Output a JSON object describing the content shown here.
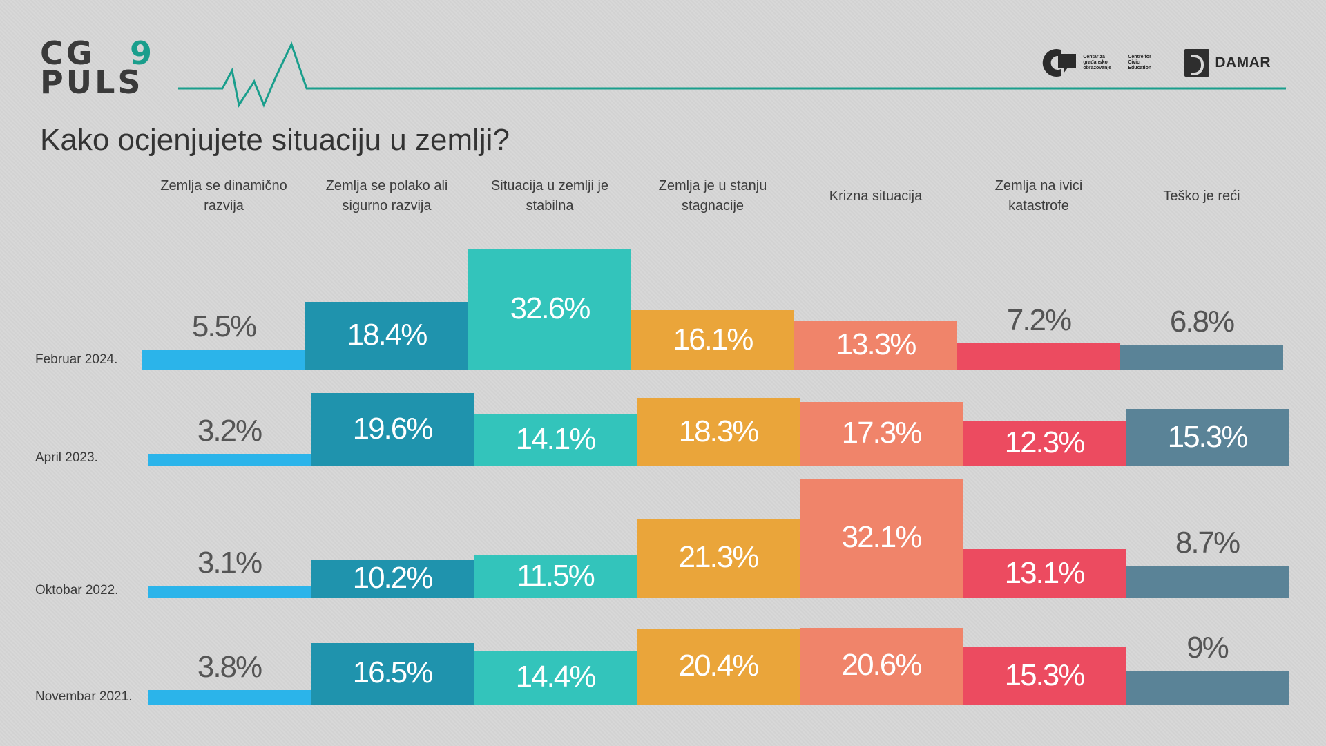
{
  "brand": {
    "logo_line1": "CG",
    "logo_number": "9",
    "logo_line2": "PULS",
    "partner1_text": "Centar za građansko obrazovanje",
    "partner1_text_en": "Centre for Civic Education",
    "partner2_text": "DAMAR"
  },
  "colors": {
    "accent": "#1a9e8c",
    "categories": [
      "#2bb4ea",
      "#1f93ad",
      "#33c4bb",
      "#eaa53a",
      "#f0846a",
      "#ec4b60",
      "#5a8397"
    ]
  },
  "chart_data": {
    "type": "bar",
    "title": "Kako ocjenjujete situaciju u zemlji?",
    "categories": [
      "Zemlja se dinamično razvija",
      "Zemlja se polako ali sigurno razvija",
      "Situacija u zemlji je stabilna",
      "Zemlja je u stanju stagnacije",
      "Krizna situacija",
      "Zemlja na ivici katastrofe",
      "Teško je reći"
    ],
    "series": [
      {
        "name": "Februar 2024.",
        "values": [
          5.5,
          18.4,
          32.6,
          16.1,
          13.3,
          7.2,
          6.8
        ],
        "labels": [
          "5.5%",
          "18.4%",
          "32.6%",
          "16.1%",
          "13.3%",
          "7.2%",
          "6.8%"
        ]
      },
      {
        "name": "April 2023.",
        "values": [
          3.2,
          19.6,
          14.1,
          18.3,
          17.3,
          12.3,
          15.3
        ],
        "labels": [
          "3.2%",
          "19.6%",
          "14.1%",
          "18.3%",
          "17.3%",
          "12.3%",
          "15.3%"
        ]
      },
      {
        "name": "Oktobar 2022.",
        "values": [
          3.1,
          10.2,
          11.5,
          21.3,
          32.1,
          13.1,
          8.7
        ],
        "labels": [
          "3.1%",
          "10.2%",
          "11.5%",
          "21.3%",
          "32.1%",
          "13.1%",
          "8.7%"
        ]
      },
      {
        "name": "Novembar 2021.",
        "values": [
          3.8,
          16.5,
          14.4,
          20.4,
          20.6,
          15.3,
          9.0
        ],
        "labels": [
          "3.8%",
          "16.5%",
          "14.4%",
          "20.4%",
          "20.6%",
          "15.3%",
          "9%"
        ]
      }
    ]
  }
}
